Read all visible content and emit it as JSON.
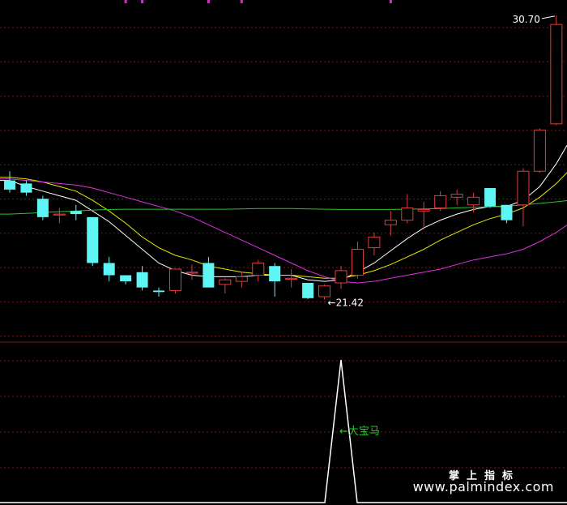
{
  "colors": {
    "background": "#000000",
    "grid": "#7a1a1a",
    "up_candle": "#e03c3c",
    "down_candle": "#5ef5f5",
    "ma_white": "#ffffff",
    "ma_yellow": "#e8e800",
    "ma_magenta": "#e030e0",
    "ma_green": "#2cc42c",
    "indicator_line": "#ffffff",
    "indicator_label": "#22cc22",
    "purple_marks": "#d030d0"
  },
  "chart_data": {
    "type": "candlestick",
    "price_range": [
      20.2,
      31.2
    ],
    "max_label": "30.70",
    "min_label": "21.42",
    "candles": [
      {
        "o": 25.3,
        "h": 25.6,
        "l": 24.9,
        "c": 25.0
      },
      {
        "o": 25.2,
        "h": 25.3,
        "l": 24.8,
        "c": 24.9
      },
      {
        "o": 24.7,
        "h": 24.8,
        "l": 24.0,
        "c": 24.1
      },
      {
        "o": 24.2,
        "h": 24.4,
        "l": 23.9,
        "c": 24.2
      },
      {
        "o": 24.3,
        "h": 24.5,
        "l": 24.0,
        "c": 24.2
      },
      {
        "o": 24.1,
        "h": 24.1,
        "l": 22.5,
        "c": 22.6
      },
      {
        "o": 22.6,
        "h": 22.8,
        "l": 22.0,
        "c": 22.2
      },
      {
        "o": 22.2,
        "h": 22.2,
        "l": 21.9,
        "c": 22.0
      },
      {
        "o": 22.3,
        "h": 22.5,
        "l": 21.7,
        "c": 21.8
      },
      {
        "o": 21.7,
        "h": 21.8,
        "l": 21.5,
        "c": 21.65
      },
      {
        "o": 21.7,
        "h": 22.4,
        "l": 21.6,
        "c": 22.4
      },
      {
        "o": 22.3,
        "h": 22.55,
        "l": 22.05,
        "c": 22.3
      },
      {
        "o": 22.6,
        "h": 22.8,
        "l": 21.8,
        "c": 21.8
      },
      {
        "o": 21.9,
        "h": 22.1,
        "l": 21.6,
        "c": 22.05
      },
      {
        "o": 22.0,
        "h": 22.3,
        "l": 21.8,
        "c": 22.15
      },
      {
        "o": 22.2,
        "h": 22.7,
        "l": 22.0,
        "c": 22.6
      },
      {
        "o": 22.5,
        "h": 22.6,
        "l": 21.5,
        "c": 22.0
      },
      {
        "o": 22.1,
        "h": 22.4,
        "l": 21.8,
        "c": 22.1
      },
      {
        "o": 21.95,
        "h": 21.95,
        "l": 21.42,
        "c": 21.45
      },
      {
        "o": 21.5,
        "h": 21.9,
        "l": 21.4,
        "c": 21.85
      },
      {
        "o": 21.95,
        "h": 22.5,
        "l": 21.75,
        "c": 22.35
      },
      {
        "o": 22.2,
        "h": 23.3,
        "l": 22.1,
        "c": 23.05
      },
      {
        "o": 23.1,
        "h": 23.6,
        "l": 22.85,
        "c": 23.45
      },
      {
        "o": 23.85,
        "h": 24.3,
        "l": 23.5,
        "c": 24.0
      },
      {
        "o": 24.0,
        "h": 24.85,
        "l": 23.9,
        "c": 24.4
      },
      {
        "o": 24.3,
        "h": 24.6,
        "l": 23.7,
        "c": 24.35
      },
      {
        "o": 24.4,
        "h": 24.95,
        "l": 24.3,
        "c": 24.8
      },
      {
        "o": 24.75,
        "h": 25.0,
        "l": 24.5,
        "c": 24.85
      },
      {
        "o": 24.5,
        "h": 24.9,
        "l": 24.25,
        "c": 24.75
      },
      {
        "o": 25.05,
        "h": 25.05,
        "l": 24.4,
        "c": 24.45
      },
      {
        "o": 24.5,
        "h": 24.5,
        "l": 23.9,
        "c": 24.0
      },
      {
        "o": 24.5,
        "h": 25.7,
        "l": 23.8,
        "c": 25.6
      },
      {
        "o": 25.6,
        "h": 27.0,
        "l": 25.55,
        "c": 26.95
      },
      {
        "o": 27.15,
        "h": 30.7,
        "l": 27.1,
        "c": 30.4
      }
    ],
    "moving_averages": [
      {
        "color": "ma_white",
        "values": [
          25.3,
          25.1,
          24.95,
          24.8,
          24.65,
          24.3,
          23.95,
          23.5,
          23.05,
          22.6,
          22.35,
          22.2,
          22.15,
          22.15,
          22.15,
          22.2,
          22.2,
          22.2,
          22.05,
          22.0,
          22.05,
          22.3,
          22.6,
          23.0,
          23.4,
          23.75,
          24.0,
          24.2,
          24.35,
          24.45,
          24.45,
          24.65,
          25.1,
          25.85
        ]
      },
      {
        "color": "ma_yellow",
        "values": [
          25.4,
          25.35,
          25.25,
          25.1,
          24.95,
          24.65,
          24.3,
          23.9,
          23.45,
          23.1,
          22.85,
          22.7,
          22.5,
          22.4,
          22.3,
          22.25,
          22.2,
          22.2,
          22.15,
          22.1,
          22.1,
          22.2,
          22.35,
          22.55,
          22.8,
          23.05,
          23.35,
          23.6,
          23.85,
          24.05,
          24.2,
          24.4,
          24.75,
          25.2
        ]
      },
      {
        "color": "ma_magenta",
        "values": [
          25.35,
          25.3,
          25.25,
          25.2,
          25.15,
          25.05,
          24.9,
          24.75,
          24.6,
          24.45,
          24.3,
          24.1,
          23.85,
          23.6,
          23.35,
          23.1,
          22.85,
          22.6,
          22.35,
          22.15,
          22.0,
          21.95,
          22.0,
          22.1,
          22.2,
          22.3,
          22.4,
          22.55,
          22.7,
          22.8,
          22.9,
          23.05,
          23.3,
          23.6
        ]
      },
      {
        "color": "ma_green",
        "values": [
          24.2,
          24.22,
          24.25,
          24.28,
          24.3,
          24.33,
          24.35,
          24.36,
          24.36,
          24.36,
          24.36,
          24.36,
          24.36,
          24.36,
          24.37,
          24.38,
          24.38,
          24.38,
          24.37,
          24.36,
          24.35,
          24.35,
          24.35,
          24.35,
          24.36,
          24.37,
          24.38,
          24.4,
          24.42,
          24.44,
          24.46,
          24.5,
          24.55,
          24.6
        ]
      }
    ],
    "purple_markers_x_index": [
      7,
      8,
      12,
      14,
      23
    ],
    "indicator": {
      "label": "←大宝马",
      "values": [
        0,
        0,
        0,
        0,
        0,
        0,
        0,
        0,
        0,
        0,
        0,
        0,
        0,
        0,
        0,
        0,
        0,
        0,
        0,
        0,
        1,
        0,
        0,
        0,
        0,
        0,
        0,
        0,
        0,
        0,
        0,
        0,
        0,
        0
      ]
    }
  },
  "watermark": {
    "line1": "掌上指标",
    "line2": "www.palmindex.com"
  }
}
